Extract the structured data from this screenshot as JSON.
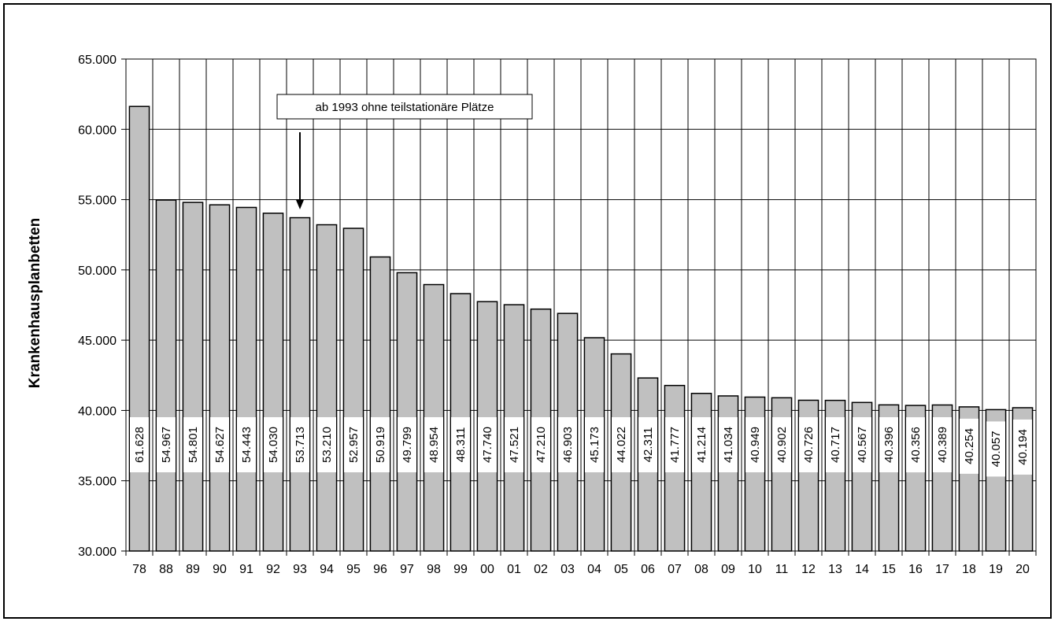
{
  "chart_data": {
    "type": "bar",
    "ylabel": "Krankenhausplanbetten",
    "ylim": [
      30000,
      65000
    ],
    "yticks": [
      30000,
      35000,
      40000,
      45000,
      50000,
      55000,
      60000,
      65000
    ],
    "ytick_labels": [
      "30.000",
      "35.000",
      "40.000",
      "45.000",
      "50.000",
      "55.000",
      "60.000",
      "65.000"
    ],
    "grid": true,
    "bar_color": "#c0c0c0",
    "categories": [
      "78",
      "88",
      "89",
      "90",
      "91",
      "92",
      "93",
      "94",
      "95",
      "96",
      "97",
      "98",
      "99",
      "00",
      "01",
      "02",
      "03",
      "04",
      "05",
      "06",
      "07",
      "08",
      "09",
      "10",
      "11",
      "12",
      "13",
      "14",
      "15",
      "16",
      "17",
      "18",
      "19",
      "20"
    ],
    "values": [
      61628,
      54967,
      54801,
      54627,
      54443,
      54030,
      53713,
      53210,
      52957,
      50919,
      49799,
      48954,
      48311,
      47740,
      47521,
      47210,
      46903,
      45173,
      44022,
      42311,
      41777,
      41214,
      41034,
      40949,
      40902,
      40726,
      40717,
      40567,
      40396,
      40356,
      40389,
      40254,
      40057,
      40194
    ],
    "data_labels": [
      "61.628",
      "54.967",
      "54.801",
      "54.627",
      "54.443",
      "54.030",
      "53.713",
      "53.210",
      "52.957",
      "50.919",
      "49.799",
      "48.954",
      "48.311",
      "47.740",
      "47.521",
      "47.210",
      "46.903",
      "45.173",
      "44.022",
      "42.311",
      "41.777",
      "41.214",
      "41.034",
      "40.949",
      "40.902",
      "40.726",
      "40.717",
      "40.567",
      "40.396",
      "40.356",
      "40.389",
      "40.254",
      "40.057",
      "40.194"
    ],
    "annotation": {
      "text": "ab 1993 ohne teilstationäre Plätze",
      "category": "93"
    }
  }
}
